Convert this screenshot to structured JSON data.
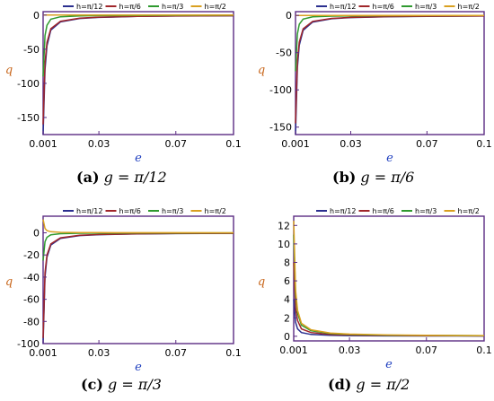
{
  "figure": {
    "panels": [
      {
        "caption": {
          "label": "(a)",
          "math": "g = π/12"
        }
      },
      {
        "caption": {
          "label": "(b)",
          "math": "g = π/6"
        }
      },
      {
        "caption": {
          "label": "(c)",
          "math": "g = π/3"
        }
      },
      {
        "caption": {
          "label": "(d)",
          "math": "g = π/2"
        }
      }
    ]
  },
  "colors": {
    "frame": "#5b2c83",
    "xlabel": "#1f3fbf",
    "ylabel": "#c8661b",
    "axis_text": "#000000"
  },
  "chart_data": [
    {
      "type": "line",
      "xlabel": "e",
      "ylabel": "q",
      "xlim": [
        0.001,
        0.1
      ],
      "ylim": [
        -175,
        5
      ],
      "xticks": [
        0.001,
        0.03,
        0.07,
        0.1
      ],
      "xtick_labels": [
        "0.001",
        "0.03",
        "0.07",
        "0.1"
      ],
      "yticks": [
        0,
        -50,
        -100,
        -150
      ],
      "ytick_labels": [
        "0",
        "-50",
        "-100",
        "-150"
      ],
      "legend": "top",
      "x": [
        0.001,
        0.002,
        0.003,
        0.005,
        0.01,
        0.02,
        0.03,
        0.05,
        0.07,
        0.1
      ],
      "series": [
        {
          "name": "h=π/12",
          "color": "#2b2f8f",
          "values": [
            -175,
            -80,
            -45,
            -22,
            -10,
            -5,
            -3.4,
            -2,
            -1.4,
            -1
          ]
        },
        {
          "name": "h=π/6",
          "color": "#a0262a",
          "values": [
            -160,
            -70,
            -40,
            -20,
            -9,
            -4.5,
            -3,
            -1.8,
            -1.3,
            -0.9
          ]
        },
        {
          "name": "h=π/3",
          "color": "#2f9a2f",
          "values": [
            -90,
            -30,
            -15,
            -6,
            -2.5,
            -1.2,
            -0.8,
            -0.5,
            -0.35,
            -0.25
          ]
        },
        {
          "name": "h=π/2",
          "color": "#d9a020",
          "values": [
            0,
            0,
            0,
            0,
            0,
            0,
            0,
            0,
            0,
            0
          ]
        }
      ]
    },
    {
      "type": "line",
      "xlabel": "e",
      "ylabel": "q",
      "xlim": [
        0.001,
        0.1
      ],
      "ylim": [
        -160,
        5
      ],
      "xticks": [
        0.001,
        0.03,
        0.07,
        0.1
      ],
      "xtick_labels": [
        "0.001",
        "0.03",
        "0.07",
        "0.1"
      ],
      "yticks": [
        0,
        -50,
        -100,
        -150
      ],
      "ytick_labels": [
        "0",
        "-50",
        "-100",
        "-150"
      ],
      "legend": "top",
      "x": [
        0.001,
        0.002,
        0.003,
        0.005,
        0.01,
        0.02,
        0.03,
        0.05,
        0.07,
        0.1
      ],
      "series": [
        {
          "name": "h=π/12",
          "color": "#2b2f8f",
          "values": [
            -160,
            -70,
            -40,
            -20,
            -9,
            -4.5,
            -3,
            -1.8,
            -1.3,
            -0.9
          ]
        },
        {
          "name": "h=π/6",
          "color": "#a0262a",
          "values": [
            -145,
            -62,
            -36,
            -18,
            -8,
            -4,
            -2.7,
            -1.6,
            -1.15,
            -0.8
          ]
        },
        {
          "name": "h=π/3",
          "color": "#2f9a2f",
          "values": [
            -75,
            -25,
            -12,
            -5,
            -2,
            -1,
            -0.7,
            -0.45,
            -0.3,
            -0.2
          ]
        },
        {
          "name": "h=π/2",
          "color": "#d9a020",
          "values": [
            0,
            0,
            0,
            0,
            0,
            0,
            0,
            0,
            0,
            0
          ]
        }
      ]
    },
    {
      "type": "line",
      "xlabel": "e",
      "ylabel": "q",
      "xlim": [
        0.001,
        0.1
      ],
      "ylim": [
        -100,
        15
      ],
      "xticks": [
        0.001,
        0.03,
        0.07,
        0.1
      ],
      "xtick_labels": [
        "0.001",
        "0.03",
        "0.07",
        "0.1"
      ],
      "yticks": [
        0,
        -20,
        -40,
        -60,
        -80,
        -100
      ],
      "ytick_labels": [
        "0",
        "-20",
        "-40",
        "-60",
        "-80",
        "-100"
      ],
      "legend": "top",
      "x": [
        0.001,
        0.002,
        0.003,
        0.005,
        0.01,
        0.02,
        0.03,
        0.05,
        0.07,
        0.1
      ],
      "series": [
        {
          "name": "h=π/12",
          "color": "#2b2f8f",
          "values": [
            -100,
            -40,
            -22,
            -11,
            -5,
            -2.5,
            -1.7,
            -1,
            -0.7,
            -0.5
          ]
        },
        {
          "name": "h=π/6",
          "color": "#a0262a",
          "values": [
            -95,
            -36,
            -20,
            -10,
            -4.5,
            -2.2,
            -1.5,
            -0.9,
            -0.65,
            -0.45
          ]
        },
        {
          "name": "h=π/3",
          "color": "#2f9a2f",
          "values": [
            -25,
            -8,
            -4,
            -1.8,
            -0.8,
            -0.4,
            -0.3,
            -0.2,
            -0.15,
            -0.1
          ]
        },
        {
          "name": "h=π/2",
          "color": "#d9a020",
          "values": [
            12,
            4,
            2,
            1,
            0.45,
            0.25,
            0.16,
            0.1,
            0.07,
            0.05
          ]
        }
      ]
    },
    {
      "type": "line",
      "xlabel": "e",
      "ylabel": "q",
      "xlim": [
        0.001,
        0.1
      ],
      "ylim": [
        -0.5,
        13
      ],
      "xticks": [
        0.001,
        0.03,
        0.07,
        0.1
      ],
      "xtick_labels": [
        "0.001",
        "0.03",
        "0.07",
        "0.1"
      ],
      "yticks": [
        0,
        2,
        4,
        6,
        8,
        10,
        12
      ],
      "ytick_labels": [
        "0",
        "2",
        "4",
        "6",
        "8",
        "10",
        "12"
      ],
      "legend": "top",
      "x": [
        0.001,
        0.002,
        0.003,
        0.005,
        0.01,
        0.02,
        0.03,
        0.05,
        0.07,
        0.1
      ],
      "series": [
        {
          "name": "h=π/12",
          "color": "#2b2f8f",
          "values": [
            4,
            1.5,
            0.8,
            0.4,
            0.2,
            0.1,
            0.07,
            0.04,
            0.03,
            0.02
          ]
        },
        {
          "name": "h=π/6",
          "color": "#a0262a",
          "values": [
            8,
            3,
            1.7,
            0.8,
            0.4,
            0.2,
            0.14,
            0.09,
            0.06,
            0.04
          ]
        },
        {
          "name": "h=π/3",
          "color": "#2f9a2f",
          "values": [
            11,
            4.5,
            2.5,
            1.2,
            0.6,
            0.3,
            0.2,
            0.12,
            0.09,
            0.06
          ]
        },
        {
          "name": "h=π/2",
          "color": "#d9a020",
          "values": [
            12.5,
            5,
            2.8,
            1.4,
            0.7,
            0.35,
            0.24,
            0.14,
            0.1,
            0.07
          ]
        }
      ]
    }
  ]
}
